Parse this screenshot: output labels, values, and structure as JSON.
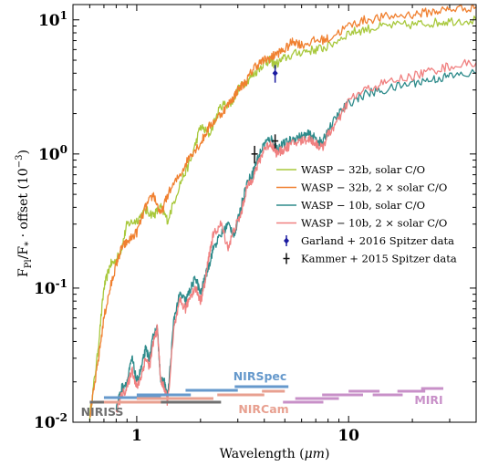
{
  "chart_data": {
    "type": "line",
    "title": "",
    "xlabel": "Wavelength (μm)",
    "ylabel": "F_Pl/F_* · offset (10^-3)",
    "xscale": "log",
    "yscale": "log",
    "xlim": [
      0.5,
      40
    ],
    "ylim": [
      0.01,
      13
    ],
    "xticks": [
      {
        "value": 1,
        "label": "1"
      },
      {
        "value": 10,
        "label": "10"
      }
    ],
    "yticks": [
      {
        "value": 0.01,
        "label": "10^-2",
        "base": "10",
        "exp": "-2"
      },
      {
        "value": 0.1,
        "label": "10^-1",
        "base": "10",
        "exp": "-1"
      },
      {
        "value": 1,
        "label": "10^0",
        "base": "10",
        "exp": "0"
      },
      {
        "value": 10,
        "label": "10^1",
        "base": "10",
        "exp": "1"
      }
    ],
    "legend_position": "right-middle",
    "series": [
      {
        "name": "WASP − 32b,  solar C/O",
        "color": "#a8c83c",
        "x": [
          0.6,
          0.65,
          0.7,
          0.75,
          0.8,
          0.85,
          0.9,
          1.0,
          1.1,
          1.2,
          1.3,
          1.4,
          1.6,
          1.8,
          2.0,
          2.2,
          2.5,
          2.8,
          3.0,
          3.3,
          3.6,
          4.0,
          4.3,
          4.5,
          5.0,
          6.0,
          7.0,
          8.0,
          10.0,
          12.0,
          15.0,
          20.0,
          25.0,
          30.0,
          40.0
        ],
        "y": [
          0.011,
          0.03,
          0.1,
          0.15,
          0.16,
          0.2,
          0.3,
          0.32,
          0.38,
          0.35,
          0.4,
          0.32,
          0.6,
          0.9,
          1.6,
          1.4,
          2.3,
          2.4,
          3.0,
          3.5,
          4.0,
          4.8,
          5.0,
          4.6,
          5.2,
          5.8,
          6.0,
          6.3,
          8.0,
          8.5,
          9.0,
          9.2,
          9.5,
          9.8,
          10.0
        ]
      },
      {
        "name": "WASP − 32b,  2 × solar C/O",
        "color": "#f08030",
        "x": [
          0.6,
          0.65,
          0.7,
          0.75,
          0.8,
          0.85,
          0.9,
          1.0,
          1.1,
          1.2,
          1.3,
          1.4,
          1.6,
          1.8,
          2.0,
          2.2,
          2.5,
          2.8,
          3.0,
          3.3,
          3.6,
          4.0,
          4.3,
          4.5,
          5.0,
          5.5,
          6.0,
          7.0,
          8.0,
          10.0,
          12.0,
          15.0,
          20.0,
          25.0,
          30.0,
          40.0
        ],
        "y": [
          0.011,
          0.025,
          0.06,
          0.1,
          0.15,
          0.2,
          0.22,
          0.26,
          0.4,
          0.5,
          0.35,
          0.5,
          0.7,
          1.0,
          1.2,
          1.6,
          2.0,
          2.5,
          3.0,
          3.5,
          4.5,
          5.0,
          5.2,
          5.5,
          6.0,
          7.0,
          6.5,
          7.0,
          7.2,
          9.0,
          10.0,
          10.5,
          11.0,
          11.5,
          12.0,
          12.5
        ]
      },
      {
        "name": "WASP − 10b,  solar C/O",
        "color": "#2e8b8b",
        "x": [
          0.8,
          0.85,
          0.9,
          0.95,
          1.0,
          1.05,
          1.1,
          1.15,
          1.2,
          1.25,
          1.3,
          1.35,
          1.4,
          1.5,
          1.6,
          1.7,
          1.8,
          1.9,
          2.0,
          2.1,
          2.2,
          2.3,
          2.5,
          2.7,
          2.9,
          3.1,
          3.3,
          3.5,
          3.7,
          4.0,
          4.3,
          4.6,
          5.0,
          5.5,
          6.0,
          6.5,
          7.0,
          7.5,
          8.0,
          9.0,
          10.0,
          12.0,
          15.0,
          20.0,
          25.0,
          30.0,
          40.0
        ],
        "y": [
          0.013,
          0.018,
          0.02,
          0.03,
          0.02,
          0.025,
          0.035,
          0.03,
          0.045,
          0.05,
          0.02,
          0.02,
          0.015,
          0.06,
          0.09,
          0.08,
          0.1,
          0.12,
          0.09,
          0.12,
          0.15,
          0.2,
          0.25,
          0.3,
          0.25,
          0.4,
          0.6,
          0.7,
          0.9,
          1.2,
          1.3,
          1.1,
          1.2,
          1.3,
          1.35,
          1.4,
          1.3,
          1.2,
          1.5,
          2.0,
          2.4,
          2.8,
          3.0,
          3.4,
          3.6,
          3.8,
          4.0
        ]
      },
      {
        "name": "WASP − 10b,  2 × solar C/O",
        "color": "#f08080",
        "x": [
          0.8,
          0.85,
          0.9,
          0.95,
          1.0,
          1.05,
          1.1,
          1.15,
          1.2,
          1.25,
          1.3,
          1.35,
          1.4,
          1.5,
          1.6,
          1.7,
          1.8,
          1.9,
          2.0,
          2.1,
          2.2,
          2.3,
          2.5,
          2.7,
          2.9,
          3.1,
          3.3,
          3.5,
          3.7,
          4.0,
          4.3,
          4.6,
          5.0,
          5.5,
          6.0,
          6.5,
          7.0,
          7.5,
          8.0,
          9.0,
          10.0,
          12.0,
          15.0,
          20.0,
          25.0,
          30.0,
          40.0
        ],
        "y": [
          0.012,
          0.016,
          0.018,
          0.025,
          0.018,
          0.022,
          0.03,
          0.026,
          0.04,
          0.05,
          0.02,
          0.018,
          0.014,
          0.05,
          0.08,
          0.07,
          0.09,
          0.1,
          0.08,
          0.11,
          0.18,
          0.25,
          0.3,
          0.2,
          0.28,
          0.35,
          0.55,
          0.65,
          0.8,
          1.1,
          1.2,
          1.0,
          1.1,
          1.2,
          1.25,
          1.3,
          1.2,
          1.1,
          1.4,
          1.8,
          2.5,
          3.0,
          3.4,
          3.8,
          4.2,
          4.5,
          4.8
        ]
      }
    ],
    "data_points": [
      {
        "name": "Garland + 2016 Spitzer data",
        "color": "#1a1aa0",
        "marker": "diamond",
        "points": [
          {
            "x": 4.5,
            "y": 4.0,
            "yerr_low": 0.6,
            "yerr_high": 0.6
          }
        ]
      },
      {
        "name": "Kammer + 2015 Spitzer data",
        "color": "#111111",
        "marker": "plus",
        "points": [
          {
            "x": 3.6,
            "y": 1.0,
            "yerr_low": 0.15,
            "yerr_high": 0.15
          },
          {
            "x": 4.5,
            "y": 1.25,
            "yerr_low": 0.15,
            "yerr_high": 0.15
          }
        ]
      }
    ],
    "instrument_bands": [
      {
        "label": "NIRISS",
        "color": "#707070",
        "ranges": [
          [
            0.6,
            2.5
          ]
        ]
      },
      {
        "label": "NIRSpec",
        "color": "#6699cc",
        "ranges": [
          [
            0.7,
            1.3
          ],
          [
            1.0,
            1.8
          ],
          [
            1.7,
            3.0
          ],
          [
            2.9,
            5.2
          ]
        ]
      },
      {
        "label": "NIRCam",
        "color": "#e8a090",
        "ranges": [
          [
            0.7,
            1.3
          ],
          [
            1.0,
            2.3
          ],
          [
            2.4,
            4.0
          ],
          [
            3.9,
            5.0
          ]
        ]
      },
      {
        "label": "MIRI",
        "color": "#c890c8",
        "ranges": [
          [
            4.9,
            7.6
          ],
          [
            5.6,
            9.0
          ],
          [
            7.5,
            11.7
          ],
          [
            10.0,
            14.0
          ],
          [
            13.0,
            18.0
          ],
          [
            17.0,
            23.0
          ],
          [
            22.0,
            28.0
          ]
        ]
      }
    ]
  }
}
